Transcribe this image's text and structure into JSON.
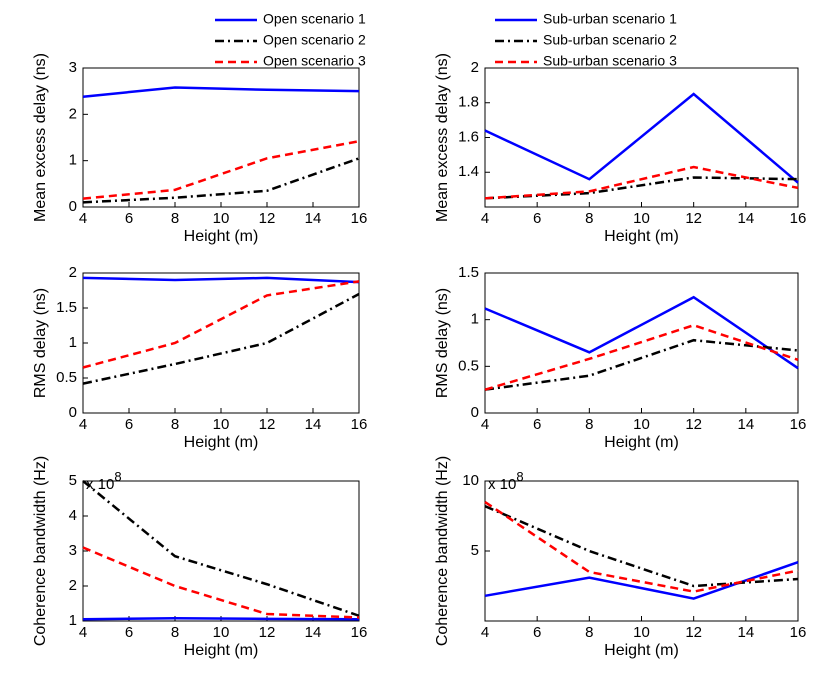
{
  "chart_data": [
    {
      "type": "line",
      "ylabel": "Mean excess delay (ns)",
      "xlabel": "Height (m)",
      "x": [
        4,
        8,
        12,
        16
      ],
      "xlim": [
        4,
        16
      ],
      "xticks": [
        4,
        6,
        8,
        10,
        12,
        14,
        16
      ],
      "ylim": [
        0,
        3
      ],
      "yticks": [
        0,
        1,
        2,
        3
      ],
      "legend": "top",
      "series": [
        {
          "name": "Open scenario 1",
          "color": "#0000ff",
          "style": "solid",
          "values": [
            2.38,
            2.58,
            2.53,
            2.5
          ]
        },
        {
          "name": "Open scenario 2",
          "color": "#000000",
          "style": "dashdot",
          "values": [
            0.1,
            0.2,
            0.35,
            1.05
          ]
        },
        {
          "name": "Open scenario 3",
          "color": "#ff0000",
          "style": "dashed",
          "values": [
            0.18,
            0.37,
            1.05,
            1.42
          ]
        }
      ]
    },
    {
      "type": "line",
      "ylabel": "Mean excess delay (ns)",
      "xlabel": "Height (m)",
      "x": [
        4,
        8,
        12,
        16
      ],
      "xlim": [
        4,
        16
      ],
      "xticks": [
        4,
        6,
        8,
        10,
        12,
        14,
        16
      ],
      "ylim": [
        1.2,
        2
      ],
      "yticks": [
        1.4,
        1.6,
        1.8,
        2
      ],
      "legend": "top",
      "series": [
        {
          "name": "Sub-urban scenario 1",
          "color": "#0000ff",
          "style": "solid",
          "values": [
            1.64,
            1.36,
            1.85,
            1.34
          ]
        },
        {
          "name": "Sub-urban scenario 2",
          "color": "#000000",
          "style": "dashdot",
          "values": [
            1.25,
            1.28,
            1.37,
            1.36
          ]
        },
        {
          "name": "Sub-urban scenario 3",
          "color": "#ff0000",
          "style": "dashed",
          "values": [
            1.25,
            1.29,
            1.43,
            1.31
          ]
        }
      ]
    },
    {
      "type": "line",
      "ylabel": "RMS delay (ns)",
      "xlabel": "Height (m)",
      "x": [
        4,
        8,
        12,
        16
      ],
      "xlim": [
        4,
        16
      ],
      "xticks": [
        4,
        6,
        8,
        10,
        12,
        14,
        16
      ],
      "ylim": [
        0,
        2
      ],
      "yticks": [
        0,
        0.5,
        1,
        1.5,
        2
      ],
      "series": [
        {
          "color": "#0000ff",
          "style": "solid",
          "values": [
            1.93,
            1.9,
            1.93,
            1.87
          ]
        },
        {
          "color": "#000000",
          "style": "dashdot",
          "values": [
            0.42,
            0.7,
            1.0,
            1.7
          ]
        },
        {
          "color": "#ff0000",
          "style": "dashed",
          "values": [
            0.65,
            1.0,
            1.68,
            1.88
          ]
        }
      ]
    },
    {
      "type": "line",
      "ylabel": "RMS delay (ns)",
      "xlabel": "Height (m)",
      "x": [
        4,
        8,
        12,
        16
      ],
      "xlim": [
        4,
        16
      ],
      "xticks": [
        4,
        6,
        8,
        10,
        12,
        14,
        16
      ],
      "ylim": [
        0,
        1.5
      ],
      "yticks": [
        0,
        0.5,
        1,
        1.5
      ],
      "series": [
        {
          "color": "#0000ff",
          "style": "solid",
          "values": [
            1.12,
            0.65,
            1.24,
            0.48
          ]
        },
        {
          "color": "#000000",
          "style": "dashdot",
          "values": [
            0.25,
            0.4,
            0.78,
            0.67
          ]
        },
        {
          "color": "#ff0000",
          "style": "dashed",
          "values": [
            0.25,
            0.58,
            0.94,
            0.57
          ]
        }
      ]
    },
    {
      "type": "line",
      "ylabel": "Coherence bandwidth (Hz)",
      "xlabel": "Height (m)",
      "x": [
        4,
        8,
        12,
        16
      ],
      "xlim": [
        4,
        16
      ],
      "xticks": [
        4,
        6,
        8,
        10,
        12,
        14,
        16
      ],
      "ylim": [
        1,
        5
      ],
      "yticks": [
        1,
        2,
        3,
        4,
        5
      ],
      "scale_label": "x 10",
      "scale_exponent": "8",
      "series": [
        {
          "color": "#0000ff",
          "style": "solid",
          "values": [
            1.05,
            1.08,
            1.06,
            1.05
          ]
        },
        {
          "color": "#000000",
          "style": "dashdot",
          "values": [
            5.0,
            2.85,
            2.05,
            1.15
          ]
        },
        {
          "color": "#ff0000",
          "style": "dashed",
          "values": [
            3.1,
            2.0,
            1.2,
            1.1
          ]
        }
      ]
    },
    {
      "type": "line",
      "ylabel": "Coherence bandwidth (Hz)",
      "xlabel": "Height (m)",
      "x": [
        4,
        8,
        12,
        16
      ],
      "xlim": [
        4,
        16
      ],
      "xticks": [
        4,
        6,
        8,
        10,
        12,
        14,
        16
      ],
      "ylim": [
        0,
        10
      ],
      "yticks": [
        5,
        10
      ],
      "scale_label": "x 10",
      "scale_exponent": "8",
      "series": [
        {
          "color": "#0000ff",
          "style": "solid",
          "values": [
            1.8,
            3.1,
            1.6,
            4.2
          ]
        },
        {
          "color": "#000000",
          "style": "dashdot",
          "values": [
            8.2,
            5.0,
            2.5,
            3.0
          ]
        },
        {
          "color": "#ff0000",
          "style": "dashed",
          "values": [
            8.5,
            3.5,
            2.1,
            3.6
          ]
        }
      ]
    }
  ]
}
